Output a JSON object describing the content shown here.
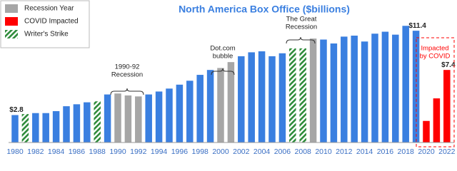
{
  "chart_data": {
    "type": "bar",
    "title": "North America Box Office ($billions)",
    "categories": [
      "1980",
      null,
      "1982",
      null,
      "1984",
      null,
      "1986",
      null,
      "1988",
      null,
      "1990",
      null,
      "1992",
      null,
      "1994",
      null,
      "1996",
      null,
      "1998",
      null,
      "2000",
      null,
      "2002",
      null,
      "2004",
      null,
      "2006",
      null,
      "2008",
      null,
      "2010",
      null,
      "2012",
      null,
      "2014",
      null,
      "2016",
      null,
      "2018",
      null,
      "2020",
      null,
      "2022"
    ],
    "values": [
      2.8,
      2.9,
      3.0,
      3.0,
      3.2,
      3.7,
      3.9,
      4.1,
      4.2,
      4.9,
      5.0,
      4.8,
      4.7,
      4.9,
      5.2,
      5.5,
      5.9,
      6.3,
      6.9,
      7.4,
      7.6,
      8.2,
      8.8,
      9.2,
      9.3,
      8.8,
      9.1,
      9.6,
      9.6,
      10.6,
      10.5,
      10.1,
      10.8,
      10.9,
      10.3,
      11.1,
      11.3,
      11.0,
      11.9,
      11.4,
      2.2,
      4.5,
      7.4
    ],
    "value_labels": [
      "$2.8",
      null,
      null,
      null,
      null,
      null,
      null,
      null,
      null,
      null,
      null,
      null,
      null,
      null,
      null,
      null,
      null,
      null,
      null,
      null,
      null,
      null,
      null,
      null,
      null,
      null,
      null,
      null,
      null,
      null,
      null,
      null,
      null,
      null,
      null,
      null,
      null,
      null,
      null,
      "$11.4",
      null,
      null,
      "$7.4"
    ],
    "base_color": "#3a7fe0",
    "legend": [
      {
        "name": "Recession Year",
        "color": "#a6a6a6"
      },
      {
        "name": "COVID Impacted",
        "color": "#ff0000"
      },
      {
        "name": "Writer's Strike",
        "color": "#2e8b3a",
        "pattern": "hatch"
      }
    ],
    "groups": [
      null,
      2,
      null,
      null,
      null,
      null,
      null,
      null,
      2,
      null,
      0,
      0,
      0,
      null,
      null,
      null,
      null,
      null,
      null,
      null,
      0,
      0,
      null,
      null,
      null,
      null,
      null,
      2,
      2,
      0,
      null,
      null,
      null,
      null,
      null,
      null,
      null,
      null,
      null,
      null,
      1,
      1,
      1
    ],
    "annotations": [
      [
        "1990-92",
        "Recession"
      ],
      [
        "Dot.com",
        "bubble"
      ],
      [
        "The Great",
        "Recession"
      ],
      [
        "Impacted",
        "by COVID"
      ]
    ],
    "ylim": [
      0,
      12.5
    ]
  }
}
